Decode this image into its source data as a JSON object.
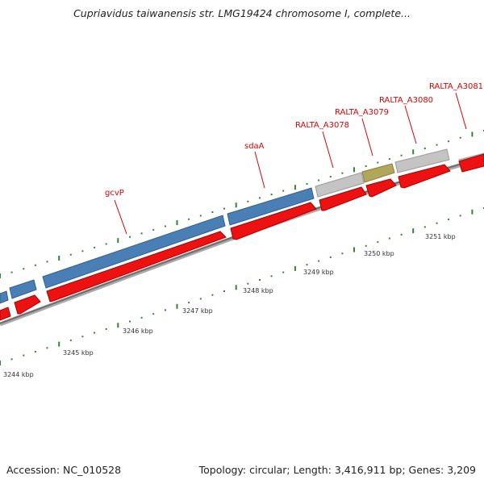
{
  "title": "Cupriavidus taiwanensis str. LMG19424 chromosome I, complete...",
  "footer": {
    "accession": "Accession: NC_010528",
    "stats": "Topology: circular; Length: 3,416,911 bp; Genes: 3,209"
  },
  "colors": {
    "gene_forward": "#4a7fb5",
    "gene_hypothetical": "#c4c4c4",
    "gene_other": "#b2a65a",
    "cds_reverse": "#ee1111",
    "backbone": "#8c8c8c",
    "tick": "#2a8a2a",
    "label": "#dd0000"
  },
  "gene_labels": [
    "gcvP",
    "sdaA",
    "RALTA_A3078",
    "RALTA_A3079",
    "RALTA_A3080",
    "RALTA_A3081"
  ],
  "scale_labels": [
    "3244 kbp",
    "3245 kbp",
    "3246 kbp",
    "3247 kbp",
    "3248 kbp",
    "3249 kbp",
    "3250 kbp",
    "3251 kbp"
  ]
}
